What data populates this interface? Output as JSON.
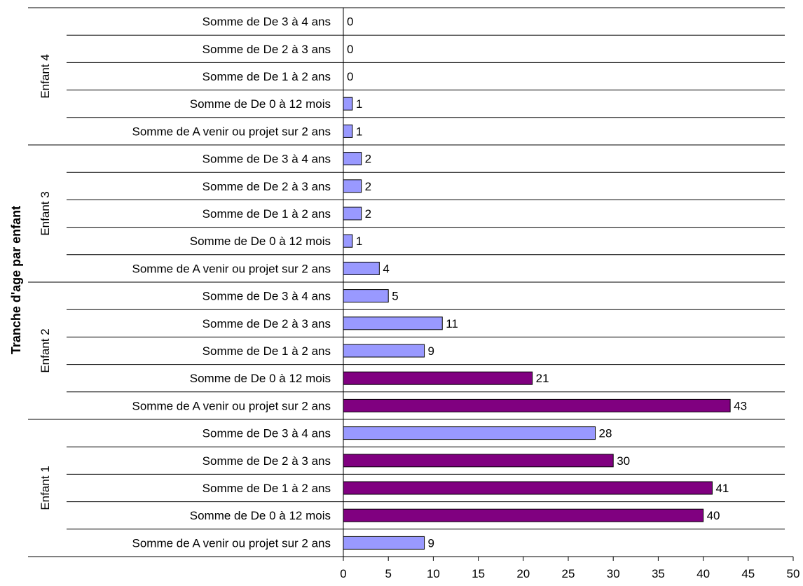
{
  "chart_data": {
    "type": "bar",
    "orientation": "horizontal",
    "ylabel": "Tranche d'age par enfant",
    "xlabel": "",
    "xlim": [
      0,
      50
    ],
    "x_ticks": [
      0,
      5,
      10,
      15,
      20,
      25,
      30,
      35,
      40,
      45,
      50
    ],
    "grid": false,
    "legend": "none",
    "colors": {
      "normal": "#9999ff",
      "highlight": "#800080"
    },
    "groups": [
      {
        "name": "Enfant 4",
        "bars": [
          {
            "label": "Somme de De 3 à 4 ans",
            "value": 0,
            "highlight": false
          },
          {
            "label": "Somme de De 2 à 3 ans",
            "value": 0,
            "highlight": false
          },
          {
            "label": "Somme de De 1 à 2 ans",
            "value": 0,
            "highlight": false
          },
          {
            "label": "Somme de De 0 à 12 mois",
            "value": 1,
            "highlight": false
          },
          {
            "label": "Somme de A venir ou projet sur 2 ans",
            "value": 1,
            "highlight": false
          }
        ]
      },
      {
        "name": "Enfant 3",
        "bars": [
          {
            "label": "Somme de De 3 à 4 ans",
            "value": 2,
            "highlight": false
          },
          {
            "label": "Somme de De 2 à 3 ans",
            "value": 2,
            "highlight": false
          },
          {
            "label": "Somme de De 1 à 2 ans",
            "value": 2,
            "highlight": false
          },
          {
            "label": "Somme de De 0 à 12 mois",
            "value": 1,
            "highlight": false
          },
          {
            "label": "Somme de A venir ou projet sur 2 ans",
            "value": 4,
            "highlight": false
          }
        ]
      },
      {
        "name": "Enfant 2",
        "bars": [
          {
            "label": "Somme de De 3 à 4 ans",
            "value": 5,
            "highlight": false
          },
          {
            "label": "Somme de De 2 à 3 ans",
            "value": 11,
            "highlight": false
          },
          {
            "label": "Somme de De 1 à 2 ans",
            "value": 9,
            "highlight": false
          },
          {
            "label": "Somme de De 0 à 12 mois",
            "value": 21,
            "highlight": true
          },
          {
            "label": "Somme de A venir ou projet sur 2 ans",
            "value": 43,
            "highlight": true
          }
        ]
      },
      {
        "name": "Enfant 1",
        "bars": [
          {
            "label": "Somme de De 3 à 4 ans",
            "value": 28,
            "highlight": false
          },
          {
            "label": "Somme de De 2 à 3 ans",
            "value": 30,
            "highlight": true
          },
          {
            "label": "Somme de De 1 à 2 ans",
            "value": 41,
            "highlight": true
          },
          {
            "label": "Somme de De 0 à 12 mois",
            "value": 40,
            "highlight": true
          },
          {
            "label": "Somme de A venir ou projet sur 2 ans",
            "value": 9,
            "highlight": false
          }
        ]
      }
    ]
  }
}
